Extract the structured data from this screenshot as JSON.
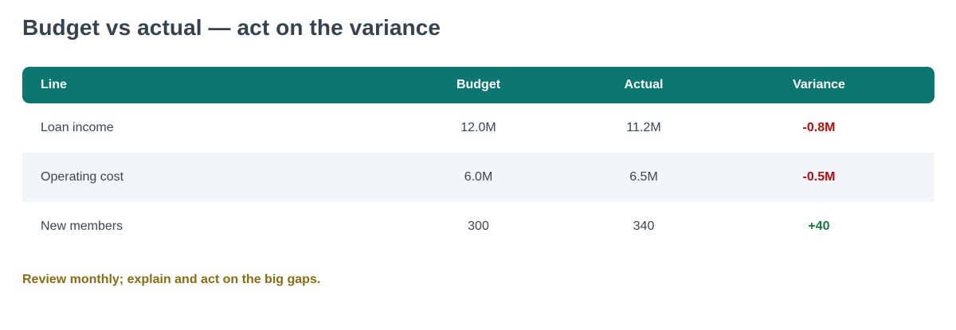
{
  "title": "Budget vs actual — act on the variance",
  "table": {
    "headers": {
      "line": "Line",
      "budget": "Budget",
      "actual": "Actual",
      "variance": "Variance"
    },
    "rows": [
      {
        "line": "Loan income",
        "budget": "12.0M",
        "actual": "11.2M",
        "variance": "-0.8M",
        "variance_status": "negative"
      },
      {
        "line": "Operating cost",
        "budget": "6.0M",
        "actual": "6.5M",
        "variance": "-0.5M",
        "variance_status": "negative"
      },
      {
        "line": "New members",
        "budget": "300",
        "actual": "340",
        "variance": "+40",
        "variance_status": "positive"
      }
    ]
  },
  "note": "Review monthly; explain and act on the big gaps.",
  "colors": {
    "header_bg": "#0b7770",
    "negative": "#b30d0d",
    "positive": "#177a3c",
    "note": "#8b6b12",
    "alt_row": "#f3f6f8"
  }
}
